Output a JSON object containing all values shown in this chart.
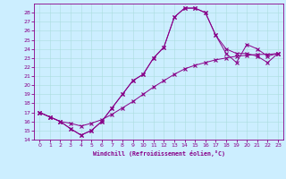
{
  "background_color": "#cceeff",
  "line_color": "#880088",
  "xlim": [
    -0.5,
    23.5
  ],
  "ylim": [
    14,
    29
  ],
  "xticks": [
    0,
    1,
    2,
    3,
    4,
    5,
    6,
    7,
    8,
    9,
    10,
    11,
    12,
    13,
    14,
    15,
    16,
    17,
    18,
    19,
    20,
    21,
    22,
    23
  ],
  "yticks": [
    14,
    15,
    16,
    17,
    18,
    19,
    20,
    21,
    22,
    23,
    24,
    25,
    26,
    27,
    28
  ],
  "xlabel": "Windchill (Refroidissement éolien,°C)",
  "line1_x": [
    0,
    1,
    2,
    3,
    4,
    5,
    6,
    7,
    8,
    9,
    10,
    11,
    12,
    13,
    14,
    15,
    16,
    17,
    18,
    19,
    20,
    21,
    22,
    23
  ],
  "line1_y": [
    17.0,
    16.5,
    16.0,
    15.8,
    15.5,
    15.8,
    16.2,
    16.8,
    17.5,
    18.2,
    19.0,
    19.8,
    20.5,
    21.2,
    21.8,
    22.2,
    22.5,
    22.8,
    23.0,
    23.2,
    23.3,
    23.4,
    23.4,
    23.5
  ],
  "line2_x": [
    0,
    1,
    2,
    3,
    4,
    5,
    6,
    7,
    8,
    9,
    10,
    11,
    12,
    13,
    14,
    15,
    16,
    17,
    18,
    19,
    20,
    21,
    22,
    23
  ],
  "line2_y": [
    17.0,
    16.5,
    16.0,
    15.2,
    14.5,
    15.0,
    16.0,
    17.5,
    19.0,
    20.5,
    21.2,
    23.0,
    24.2,
    27.5,
    28.5,
    28.5,
    28.0,
    25.5,
    24.0,
    23.5,
    23.5,
    23.2,
    22.5,
    23.5
  ],
  "line3_x": [
    0,
    1,
    2,
    3,
    4,
    5,
    6,
    7,
    8,
    9,
    10,
    11,
    12,
    13,
    14,
    15,
    16,
    17,
    18,
    19,
    20,
    21,
    22,
    23
  ],
  "line3_y": [
    17.0,
    16.5,
    16.0,
    15.2,
    14.5,
    15.0,
    16.0,
    17.5,
    19.0,
    20.5,
    21.2,
    23.0,
    24.2,
    27.5,
    28.5,
    28.5,
    28.0,
    25.5,
    23.5,
    22.5,
    24.5,
    24.0,
    23.2,
    23.5
  ]
}
